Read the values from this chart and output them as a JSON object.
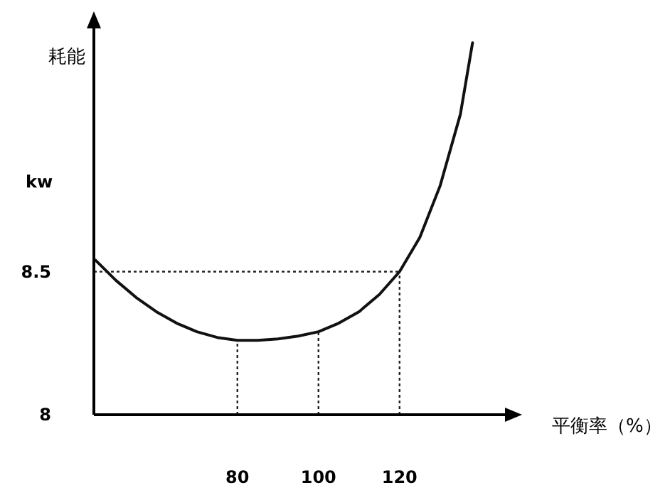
{
  "chart_data": {
    "type": "line",
    "ylabel": "耗能",
    "xlabel": "平衡率（%）",
    "annotations": [
      "kw"
    ],
    "xlim": [
      44.6,
      146
    ],
    "ylim": [
      8,
      9.35
    ],
    "xticks": [
      80,
      100,
      120
    ],
    "yticks": [
      8,
      8.5
    ],
    "grid": false,
    "marker": "none",
    "line_style": "solid",
    "series": [
      {
        "color": "#111111",
        "x": [
          45,
          50,
          55,
          60,
          65,
          70,
          75,
          80,
          85,
          90,
          95,
          100,
          105,
          110,
          115,
          120,
          125,
          130,
          135,
          138
        ],
        "values": [
          8.54,
          8.47,
          8.41,
          8.36,
          8.32,
          8.29,
          8.27,
          8.26,
          8.26,
          8.265,
          8.275,
          8.29,
          8.32,
          8.36,
          8.42,
          8.5,
          8.62,
          8.8,
          9.05,
          9.3
        ]
      }
    ],
    "ref_lines": [
      {
        "axis": "x",
        "value": 80,
        "line_style": "dotted",
        "color": "#222222"
      },
      {
        "axis": "x",
        "value": 100,
        "line_style": "dotted",
        "color": "#222222"
      },
      {
        "axis": "x",
        "value": 120,
        "line_style": "dotted",
        "color": "#222222"
      },
      {
        "axis": "y",
        "value": 8.5,
        "line_style": "dotted",
        "color": "#222222"
      }
    ]
  }
}
